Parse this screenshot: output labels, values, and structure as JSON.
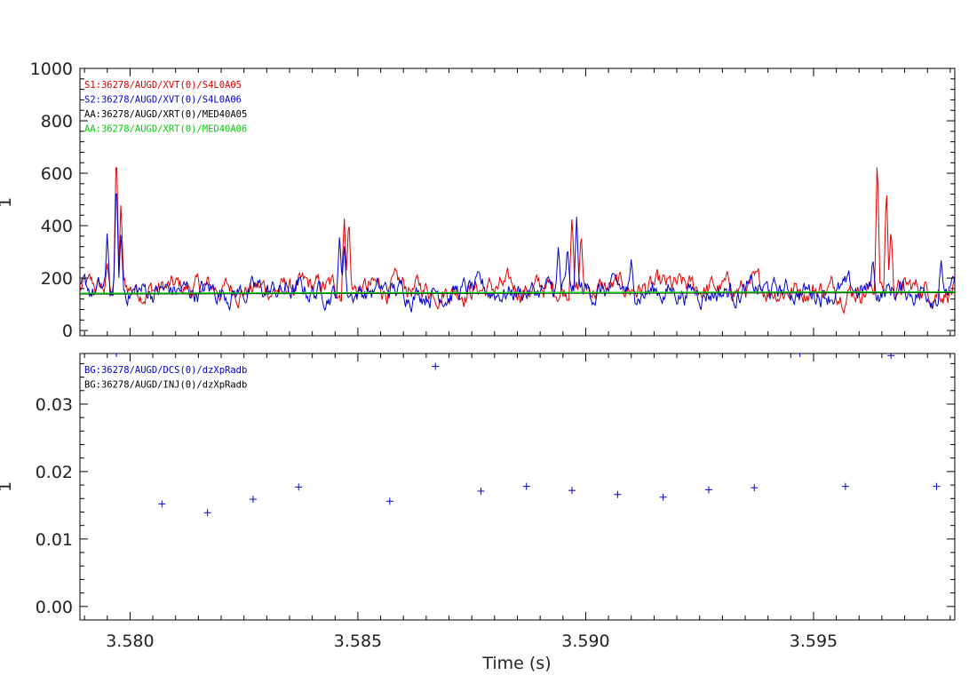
{
  "xlabel": "Time (s)",
  "x_tick_labels": [
    "3.580",
    "3.585",
    "3.590",
    "3.595"
  ],
  "colors": {
    "red": "#dd0000",
    "blue": "#0000cc",
    "black": "#000000",
    "green": "#00cc00"
  },
  "chart_data": [
    {
      "type": "line",
      "ylabel": "1",
      "xlim": [
        3.5789,
        3.5981
      ],
      "ylim": [
        -20,
        1000
      ],
      "grid": false,
      "legend_position": "top-left",
      "y_tick_labels": [
        "0",
        "200",
        "400",
        "600",
        "800",
        "1000"
      ],
      "y_ticks": [
        0,
        200,
        400,
        600,
        800,
        1000
      ],
      "legend": [
        "S1:36278/AUGD/XVT(0)/S4L0A05",
        "S2:36278/AUGD/XVT(0)/S4L0A06",
        "AA:36278/AUGD/XRT(0)/MED40A05",
        "AA:36278/AUGD/XRT(0)/MED40A06"
      ],
      "series": [
        {
          "name": "S1:36278/AUGD/XVT(0)/S4L0A05",
          "color": "#dd0000",
          "baseline": 160,
          "spikes": [
            [
              3.5795,
              260
            ],
            [
              3.5797,
              720
            ],
            [
              3.5798,
              500
            ],
            [
              3.5847,
              440
            ],
            [
              3.5848,
              440
            ],
            [
              3.5897,
              450
            ],
            [
              3.5899,
              380
            ],
            [
              3.5964,
              680
            ],
            [
              3.5966,
              560
            ],
            [
              3.5967,
              400
            ]
          ]
        },
        {
          "name": "S2:36278/AUGD/XVT(0)/S4L0A06",
          "color": "#0000cc",
          "baseline": 150,
          "spikes": [
            [
              3.5795,
              380
            ],
            [
              3.5797,
              600
            ],
            [
              3.5798,
              380
            ],
            [
              3.5846,
              370
            ],
            [
              3.5847,
              330
            ],
            [
              3.5894,
              330
            ],
            [
              3.5896,
              330
            ],
            [
              3.5898,
              440
            ],
            [
              3.591,
              280
            ],
            [
              3.5963,
              280
            ],
            [
              3.5978,
              270
            ]
          ]
        },
        {
          "name": "AA:36278/AUGD/XRT(0)/MED40A05",
          "color": "#000000",
          "x": [
            3.5789,
            3.5981
          ],
          "y": [
            140,
            145
          ]
        },
        {
          "name": "AA:36278/AUGD/XRT(0)/MED40A06",
          "color": "#00cc00",
          "x": [
            3.5789,
            3.5981
          ],
          "y": [
            142,
            147
          ]
        }
      ]
    },
    {
      "type": "scatter",
      "ylabel": "1",
      "xlim": [
        3.5789,
        3.5981
      ],
      "ylim": [
        -0.002,
        0.0375
      ],
      "grid": false,
      "legend_position": "top-left",
      "y_tick_labels": [
        "0.00",
        "0.01",
        "0.02",
        "0.03"
      ],
      "y_ticks": [
        0,
        0.01,
        0.02,
        0.03
      ],
      "legend": [
        "BG:36278/AUGD/DCS(0)/dzXpRadb",
        "BG:36278/AUGD/INJ(0)/dzXpRadb"
      ],
      "series": [
        {
          "name": "BG:36278/AUGD/DCS(0)/dzXpRadb",
          "color": "#0000cc",
          "marker": "+",
          "x": [
            3.5797,
            3.5807,
            3.5817,
            3.5827,
            3.5837,
            3.5847,
            3.5857,
            3.5867,
            3.5877,
            3.5887,
            3.5897,
            3.5907,
            3.5917,
            3.5927,
            3.5937,
            3.5947,
            3.5957,
            3.5967,
            3.5977
          ],
          "y": [
            0.0375,
            0.0152,
            0.0139,
            0.0159,
            0.0177,
            0.038,
            0.0156,
            0.0356,
            0.0171,
            0.0178,
            0.0172,
            0.0166,
            0.0162,
            0.0173,
            0.0176,
            0.0375,
            0.0178,
            0.0372,
            0.0178
          ]
        }
      ]
    }
  ]
}
